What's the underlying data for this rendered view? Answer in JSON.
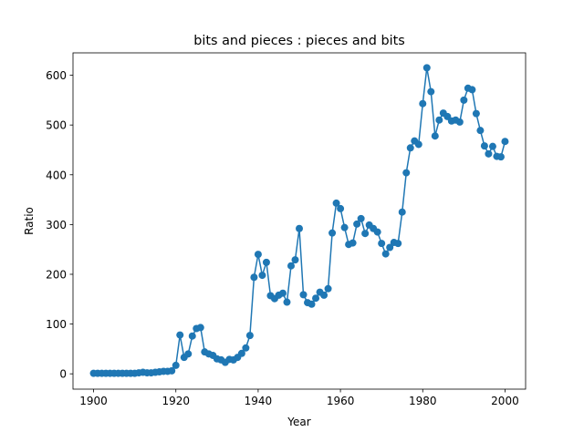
{
  "chart_data": {
    "type": "line",
    "title": "bits and pieces : pieces and bits",
    "xlabel": "Year",
    "ylabel": "Ratio",
    "xlim": [
      1895,
      2005
    ],
    "ylim": [
      -30.8,
      645
    ],
    "x_ticks": [
      1900,
      1920,
      1940,
      1960,
      1980,
      2000
    ],
    "y_ticks": [
      0,
      100,
      200,
      300,
      400,
      500,
      600
    ],
    "grid": false,
    "legend": "none",
    "marker": "circle",
    "color": "#1f77b4",
    "series": [
      {
        "x": [
          1900,
          1901,
          1902,
          1903,
          1904,
          1905,
          1906,
          1907,
          1908,
          1909,
          1910,
          1911,
          1912,
          1913,
          1914,
          1915,
          1916,
          1917,
          1918,
          1919,
          1920,
          1921,
          1922,
          1923,
          1924,
          1925,
          1926,
          1927,
          1928,
          1929,
          1930,
          1931,
          1932,
          1933,
          1934,
          1935,
          1936,
          1937,
          1938,
          1939,
          1940,
          1941,
          1942,
          1943,
          1944,
          1945,
          1946,
          1947,
          1948,
          1949,
          1950,
          1951,
          1952,
          1953,
          1954,
          1955,
          1956,
          1957,
          1958,
          1959,
          1960,
          1961,
          1962,
          1963,
          1964,
          1965,
          1966,
          1967,
          1968,
          1969,
          1970,
          1971,
          1972,
          1973,
          1974,
          1975,
          1976,
          1977,
          1978,
          1979,
          1980,
          1981,
          1982,
          1983,
          1984,
          1985,
          1986,
          1987,
          1988,
          1989,
          1990,
          1991,
          1992,
          1993,
          1994,
          1995,
          1996,
          1997,
          1998,
          1999,
          2000
        ],
        "y": [
          1,
          1,
          1,
          1,
          1,
          1,
          1,
          1,
          1,
          1,
          1,
          2,
          3,
          2,
          2,
          3,
          4,
          5,
          5,
          6,
          17,
          78,
          33,
          40,
          76,
          91,
          93,
          44,
          40,
          37,
          30,
          28,
          23,
          29,
          28,
          33,
          41,
          52,
          77,
          194,
          240,
          198,
          224,
          157,
          151,
          158,
          162,
          144,
          217,
          229,
          292,
          159,
          143,
          140,
          152,
          164,
          158,
          171,
          283,
          343,
          332,
          294,
          260,
          263,
          301,
          312,
          282,
          299,
          292,
          285,
          262,
          241,
          254,
          264,
          262,
          325,
          404,
          454,
          468,
          461,
          543,
          615,
          567,
          478,
          510,
          524,
          517,
          508,
          510,
          506,
          550,
          574,
          571,
          523,
          489,
          458,
          442,
          457,
          437,
          436,
          467
        ]
      }
    ]
  }
}
